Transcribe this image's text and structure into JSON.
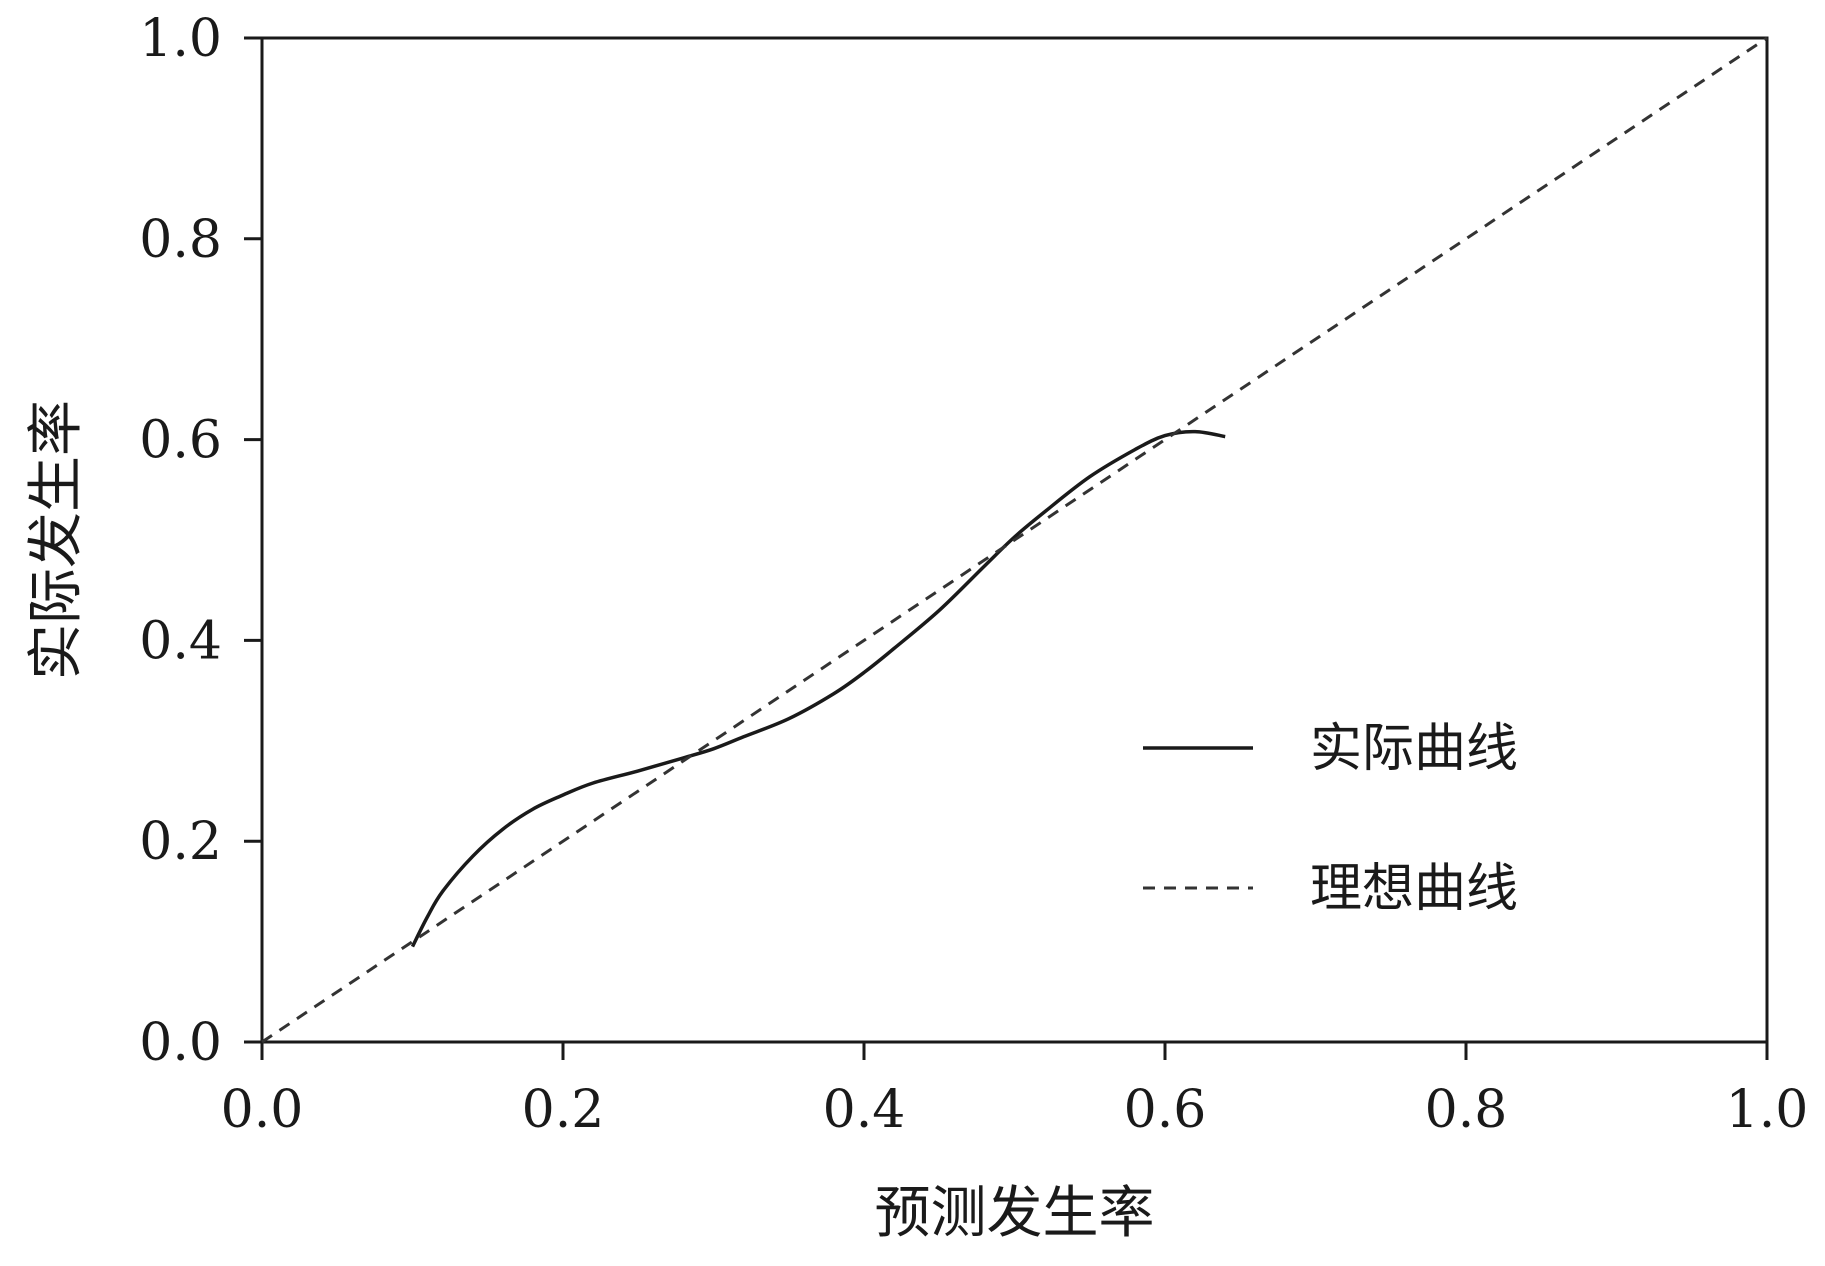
{
  "chart_data": {
    "type": "line",
    "xlabel": "预测发生率",
    "ylabel": "实际发生率",
    "xlim": [
      0,
      1
    ],
    "ylim": [
      0,
      1
    ],
    "x_ticks": [
      "0.0",
      "0.2",
      "0.4",
      "0.6",
      "0.8",
      "1.0"
    ],
    "y_ticks": [
      "0.0",
      "0.2",
      "0.4",
      "0.6",
      "0.8",
      "1.0"
    ],
    "grid": false,
    "legend_position": "center-right",
    "series": [
      {
        "name": "实际曲线",
        "style": "solid",
        "color": "#1a1a1a",
        "points": [
          [
            0.1,
            0.095
          ],
          [
            0.11,
            0.125
          ],
          [
            0.12,
            0.15
          ],
          [
            0.14,
            0.185
          ],
          [
            0.16,
            0.212
          ],
          [
            0.18,
            0.232
          ],
          [
            0.2,
            0.246
          ],
          [
            0.22,
            0.258
          ],
          [
            0.25,
            0.27
          ],
          [
            0.28,
            0.283
          ],
          [
            0.3,
            0.292
          ],
          [
            0.32,
            0.304
          ],
          [
            0.35,
            0.322
          ],
          [
            0.38,
            0.347
          ],
          [
            0.4,
            0.368
          ],
          [
            0.42,
            0.392
          ],
          [
            0.45,
            0.43
          ],
          [
            0.48,
            0.474
          ],
          [
            0.5,
            0.503
          ],
          [
            0.52,
            0.528
          ],
          [
            0.55,
            0.563
          ],
          [
            0.58,
            0.59
          ],
          [
            0.6,
            0.604
          ],
          [
            0.62,
            0.608
          ],
          [
            0.64,
            0.603
          ]
        ]
      },
      {
        "name": "理想曲线",
        "style": "dashed",
        "color": "#333333",
        "points": [
          [
            0.0,
            0.0
          ],
          [
            1.0,
            1.0
          ]
        ]
      }
    ]
  }
}
